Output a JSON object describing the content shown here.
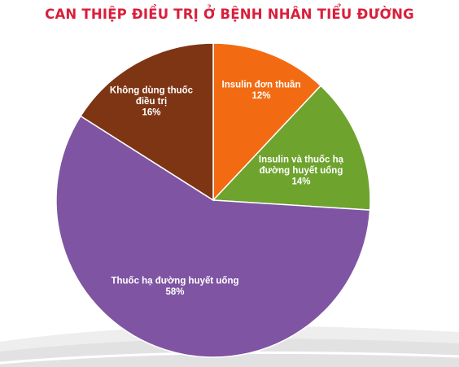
{
  "chart_data": {
    "type": "pie",
    "title": "CAN THIỆP ĐIỀU TRỊ Ở BỆNH NHÂN TIỂU ĐƯỜNG",
    "start_angle_deg": 0,
    "direction": "clockwise",
    "slices": [
      {
        "label_lines": [
          "Insulin đơn thuần"
        ],
        "value": 12,
        "value_label": "12%",
        "color": "#f26b12"
      },
      {
        "label_lines": [
          "Insulin và thuốc hạ",
          "đường huyết uống"
        ],
        "value": 14,
        "value_label": "14%",
        "color": "#6ea32d"
      },
      {
        "label_lines": [
          "Thuốc hạ đường huyết uống"
        ],
        "value": 58,
        "value_label": "58%",
        "color": "#7f55a3"
      },
      {
        "label_lines": [
          "Không dùng thuốc",
          "điều trị"
        ],
        "value": 16,
        "value_label": "16%",
        "color": "#7e3514"
      }
    ],
    "legend": "none"
  },
  "colors": {
    "title": "#d91f3b",
    "slice_border": "#ffffff"
  }
}
